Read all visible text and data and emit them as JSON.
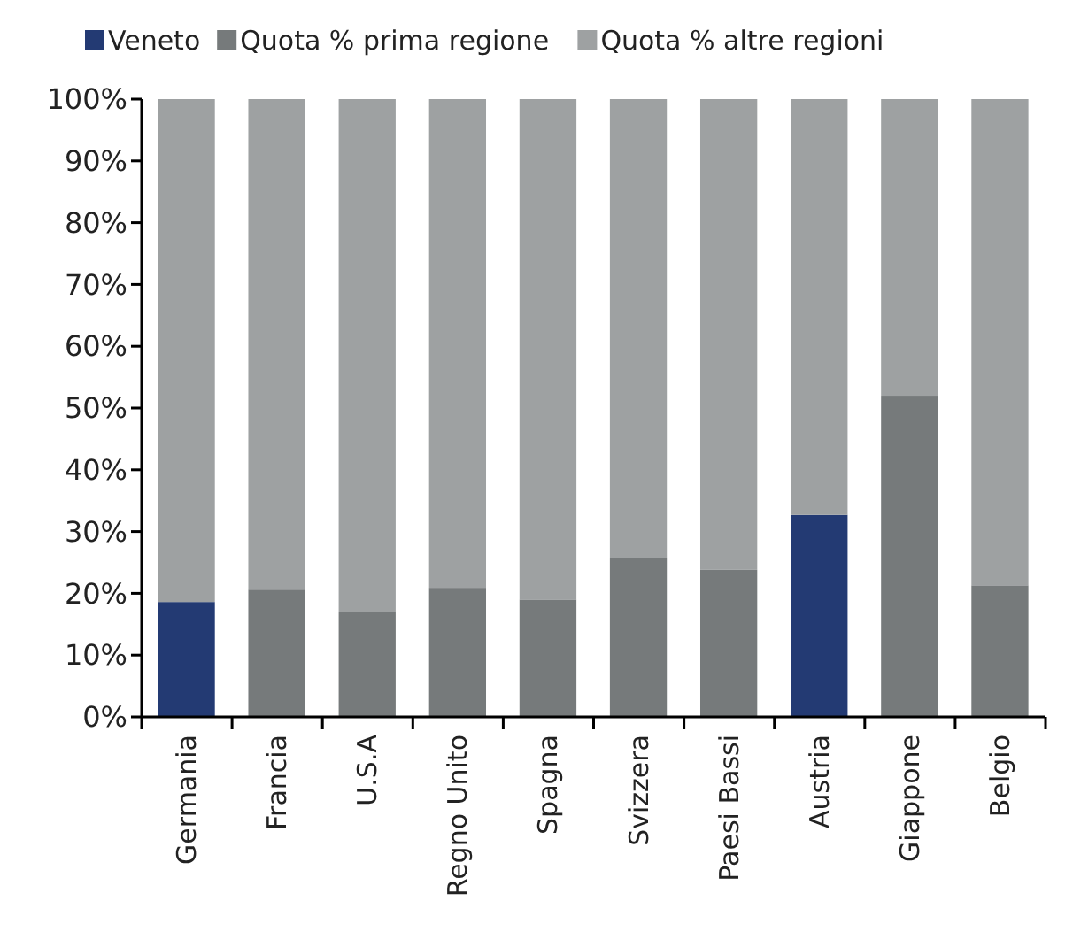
{
  "chart_data": {
    "type": "bar",
    "stacked": true,
    "categories": [
      "Germania",
      "Francia",
      "U.S.A",
      "Regno Unito",
      "Spagna",
      "Svizzera",
      "Paesi Bassi",
      "Austria",
      "Giappone",
      "Belgio"
    ],
    "series": [
      {
        "name": "Veneto",
        "color": "#233a73",
        "values": [
          18.6,
          null,
          null,
          null,
          null,
          null,
          null,
          32.7,
          null,
          null
        ]
      },
      {
        "name": "Quota % prima regione",
        "color": "#767a7b",
        "values": [
          null,
          20.6,
          17.0,
          20.9,
          19.0,
          25.7,
          23.8,
          null,
          52.0,
          21.3
        ]
      },
      {
        "name": "Quota % altre regioni",
        "color": "#9ea1a2",
        "values": [
          81.4,
          79.4,
          83.0,
          79.1,
          81.0,
          74.3,
          76.2,
          67.3,
          48.0,
          78.7
        ]
      }
    ],
    "ylim": [
      0,
      100
    ],
    "yticks": [
      {
        "value": 0,
        "label": "0%"
      },
      {
        "value": 10,
        "label": "10%"
      },
      {
        "value": 20,
        "label": "20%"
      },
      {
        "value": 30,
        "label": "30%"
      },
      {
        "value": 40,
        "label": "40%"
      },
      {
        "value": 50,
        "label": "50%"
      },
      {
        "value": 60,
        "label": "60%"
      },
      {
        "value": 70,
        "label": "70%"
      },
      {
        "value": 80,
        "label": "80%"
      },
      {
        "value": 90,
        "label": "90%"
      },
      {
        "value": 100,
        "label": "100%"
      }
    ],
    "legend": "top",
    "grid": false
  }
}
